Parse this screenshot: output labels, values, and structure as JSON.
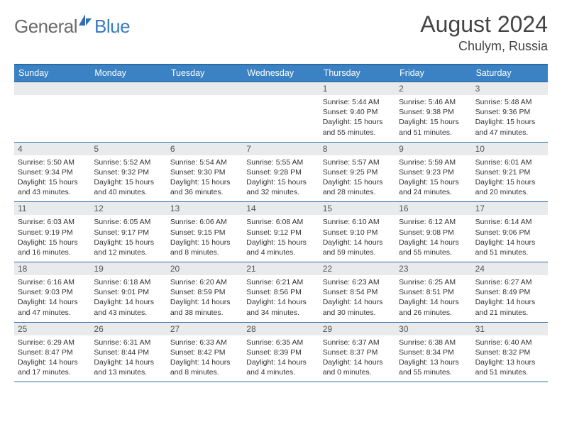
{
  "brand": {
    "general": "General",
    "blue": "Blue"
  },
  "title": "August 2024",
  "location": "Chulym, Russia",
  "weekdays": [
    "Sunday",
    "Monday",
    "Tuesday",
    "Wednesday",
    "Thursday",
    "Friday",
    "Saturday"
  ],
  "colors": {
    "header_bg": "#3a82c4",
    "header_border": "#2e6aa3",
    "strip_bg": "#e9eaeb",
    "text": "#333333",
    "logo_gray": "#6b6b6b",
    "logo_blue": "#3a7bbf"
  },
  "weeks": [
    [
      {
        "n": "",
        "sr": "",
        "ss": "",
        "dl1": "",
        "dl2": ""
      },
      {
        "n": "",
        "sr": "",
        "ss": "",
        "dl1": "",
        "dl2": ""
      },
      {
        "n": "",
        "sr": "",
        "ss": "",
        "dl1": "",
        "dl2": ""
      },
      {
        "n": "",
        "sr": "",
        "ss": "",
        "dl1": "",
        "dl2": ""
      },
      {
        "n": "1",
        "sr": "Sunrise: 5:44 AM",
        "ss": "Sunset: 9:40 PM",
        "dl1": "Daylight: 15 hours",
        "dl2": "and 55 minutes."
      },
      {
        "n": "2",
        "sr": "Sunrise: 5:46 AM",
        "ss": "Sunset: 9:38 PM",
        "dl1": "Daylight: 15 hours",
        "dl2": "and 51 minutes."
      },
      {
        "n": "3",
        "sr": "Sunrise: 5:48 AM",
        "ss": "Sunset: 9:36 PM",
        "dl1": "Daylight: 15 hours",
        "dl2": "and 47 minutes."
      }
    ],
    [
      {
        "n": "4",
        "sr": "Sunrise: 5:50 AM",
        "ss": "Sunset: 9:34 PM",
        "dl1": "Daylight: 15 hours",
        "dl2": "and 43 minutes."
      },
      {
        "n": "5",
        "sr": "Sunrise: 5:52 AM",
        "ss": "Sunset: 9:32 PM",
        "dl1": "Daylight: 15 hours",
        "dl2": "and 40 minutes."
      },
      {
        "n": "6",
        "sr": "Sunrise: 5:54 AM",
        "ss": "Sunset: 9:30 PM",
        "dl1": "Daylight: 15 hours",
        "dl2": "and 36 minutes."
      },
      {
        "n": "7",
        "sr": "Sunrise: 5:55 AM",
        "ss": "Sunset: 9:28 PM",
        "dl1": "Daylight: 15 hours",
        "dl2": "and 32 minutes."
      },
      {
        "n": "8",
        "sr": "Sunrise: 5:57 AM",
        "ss": "Sunset: 9:25 PM",
        "dl1": "Daylight: 15 hours",
        "dl2": "and 28 minutes."
      },
      {
        "n": "9",
        "sr": "Sunrise: 5:59 AM",
        "ss": "Sunset: 9:23 PM",
        "dl1": "Daylight: 15 hours",
        "dl2": "and 24 minutes."
      },
      {
        "n": "10",
        "sr": "Sunrise: 6:01 AM",
        "ss": "Sunset: 9:21 PM",
        "dl1": "Daylight: 15 hours",
        "dl2": "and 20 minutes."
      }
    ],
    [
      {
        "n": "11",
        "sr": "Sunrise: 6:03 AM",
        "ss": "Sunset: 9:19 PM",
        "dl1": "Daylight: 15 hours",
        "dl2": "and 16 minutes."
      },
      {
        "n": "12",
        "sr": "Sunrise: 6:05 AM",
        "ss": "Sunset: 9:17 PM",
        "dl1": "Daylight: 15 hours",
        "dl2": "and 12 minutes."
      },
      {
        "n": "13",
        "sr": "Sunrise: 6:06 AM",
        "ss": "Sunset: 9:15 PM",
        "dl1": "Daylight: 15 hours",
        "dl2": "and 8 minutes."
      },
      {
        "n": "14",
        "sr": "Sunrise: 6:08 AM",
        "ss": "Sunset: 9:12 PM",
        "dl1": "Daylight: 15 hours",
        "dl2": "and 4 minutes."
      },
      {
        "n": "15",
        "sr": "Sunrise: 6:10 AM",
        "ss": "Sunset: 9:10 PM",
        "dl1": "Daylight: 14 hours",
        "dl2": "and 59 minutes."
      },
      {
        "n": "16",
        "sr": "Sunrise: 6:12 AM",
        "ss": "Sunset: 9:08 PM",
        "dl1": "Daylight: 14 hours",
        "dl2": "and 55 minutes."
      },
      {
        "n": "17",
        "sr": "Sunrise: 6:14 AM",
        "ss": "Sunset: 9:06 PM",
        "dl1": "Daylight: 14 hours",
        "dl2": "and 51 minutes."
      }
    ],
    [
      {
        "n": "18",
        "sr": "Sunrise: 6:16 AM",
        "ss": "Sunset: 9:03 PM",
        "dl1": "Daylight: 14 hours",
        "dl2": "and 47 minutes."
      },
      {
        "n": "19",
        "sr": "Sunrise: 6:18 AM",
        "ss": "Sunset: 9:01 PM",
        "dl1": "Daylight: 14 hours",
        "dl2": "and 43 minutes."
      },
      {
        "n": "20",
        "sr": "Sunrise: 6:20 AM",
        "ss": "Sunset: 8:59 PM",
        "dl1": "Daylight: 14 hours",
        "dl2": "and 38 minutes."
      },
      {
        "n": "21",
        "sr": "Sunrise: 6:21 AM",
        "ss": "Sunset: 8:56 PM",
        "dl1": "Daylight: 14 hours",
        "dl2": "and 34 minutes."
      },
      {
        "n": "22",
        "sr": "Sunrise: 6:23 AM",
        "ss": "Sunset: 8:54 PM",
        "dl1": "Daylight: 14 hours",
        "dl2": "and 30 minutes."
      },
      {
        "n": "23",
        "sr": "Sunrise: 6:25 AM",
        "ss": "Sunset: 8:51 PM",
        "dl1": "Daylight: 14 hours",
        "dl2": "and 26 minutes."
      },
      {
        "n": "24",
        "sr": "Sunrise: 6:27 AM",
        "ss": "Sunset: 8:49 PM",
        "dl1": "Daylight: 14 hours",
        "dl2": "and 21 minutes."
      }
    ],
    [
      {
        "n": "25",
        "sr": "Sunrise: 6:29 AM",
        "ss": "Sunset: 8:47 PM",
        "dl1": "Daylight: 14 hours",
        "dl2": "and 17 minutes."
      },
      {
        "n": "26",
        "sr": "Sunrise: 6:31 AM",
        "ss": "Sunset: 8:44 PM",
        "dl1": "Daylight: 14 hours",
        "dl2": "and 13 minutes."
      },
      {
        "n": "27",
        "sr": "Sunrise: 6:33 AM",
        "ss": "Sunset: 8:42 PM",
        "dl1": "Daylight: 14 hours",
        "dl2": "and 8 minutes."
      },
      {
        "n": "28",
        "sr": "Sunrise: 6:35 AM",
        "ss": "Sunset: 8:39 PM",
        "dl1": "Daylight: 14 hours",
        "dl2": "and 4 minutes."
      },
      {
        "n": "29",
        "sr": "Sunrise: 6:37 AM",
        "ss": "Sunset: 8:37 PM",
        "dl1": "Daylight: 14 hours",
        "dl2": "and 0 minutes."
      },
      {
        "n": "30",
        "sr": "Sunrise: 6:38 AM",
        "ss": "Sunset: 8:34 PM",
        "dl1": "Daylight: 13 hours",
        "dl2": "and 55 minutes."
      },
      {
        "n": "31",
        "sr": "Sunrise: 6:40 AM",
        "ss": "Sunset: 8:32 PM",
        "dl1": "Daylight: 13 hours",
        "dl2": "and 51 minutes."
      }
    ]
  ]
}
